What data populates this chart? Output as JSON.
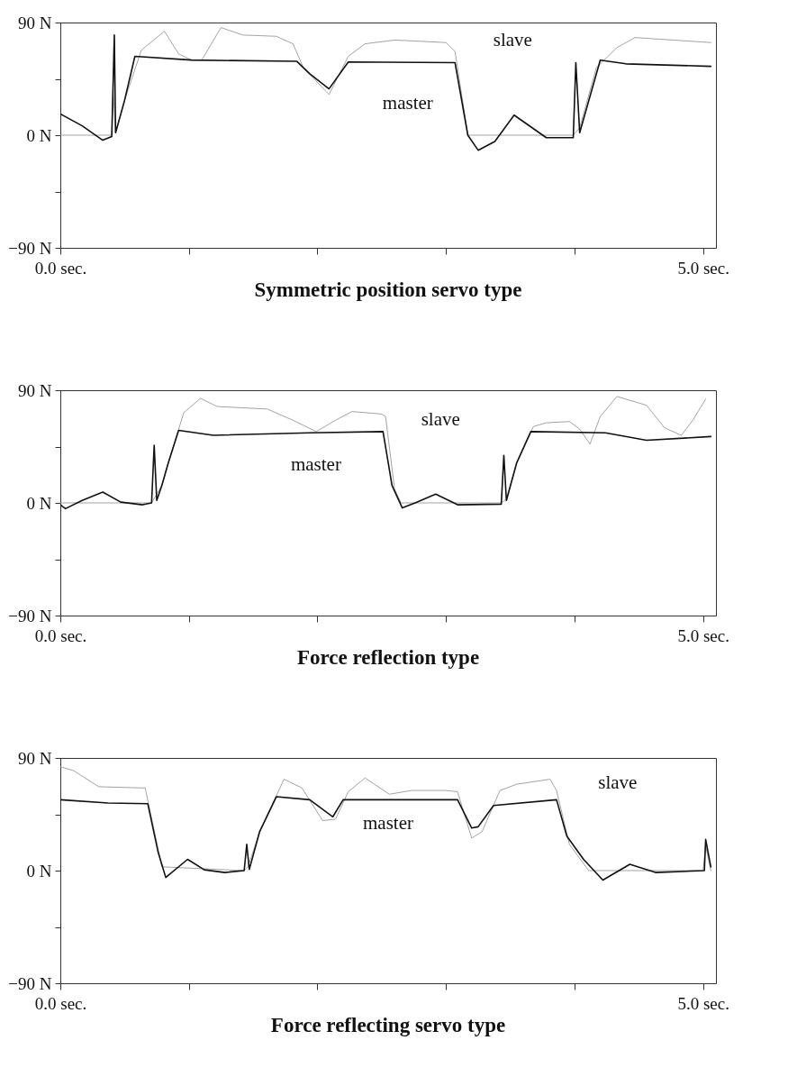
{
  "chart_data": [
    {
      "type": "line",
      "title": "Symmetric position servo type",
      "xlim": [
        0,
        5.1
      ],
      "ylim": [
        -90,
        90
      ],
      "xticks": [
        {
          "value": 0,
          "label": "0.0 sec."
        },
        {
          "value": 1,
          "label": null
        },
        {
          "value": 2,
          "label": null
        },
        {
          "value": 3,
          "label": null
        },
        {
          "value": 4,
          "label": null
        },
        {
          "value": 5,
          "label": "5.0 sec."
        }
      ],
      "yticks": [
        {
          "value": 90,
          "label": "90 N"
        },
        {
          "value": 45,
          "label": null
        },
        {
          "value": 0,
          "label": "0 N"
        },
        {
          "value": -45,
          "label": null
        },
        {
          "value": -90,
          "label": "−90 N"
        }
      ],
      "line_style": "solid",
      "series": [
        {
          "color": "#999999",
          "x": [
            0,
            0.4,
            0.41,
            0.43,
            0.51,
            0.63,
            0.81,
            0.92,
            1.02,
            1.1,
            1.25,
            1.42,
            1.68,
            1.81,
            1.89,
            2.09,
            2.24,
            2.37,
            2.6,
            3.0,
            3.07,
            3.17,
            3.99,
            4.04,
            4.17,
            4.33,
            4.47,
            5.06
          ],
          "values": [
            0,
            0,
            37,
            2,
            31,
            68,
            83,
            65,
            60,
            60,
            86,
            80,
            79,
            73,
            54,
            32.5,
            63,
            73,
            76,
            74,
            67,
            0,
            0,
            6,
            54,
            70,
            78,
            74
          ]
        },
        {
          "color": "#111111",
          "x": [
            0,
            0.17,
            0.33,
            0.4,
            0.42,
            0.43,
            0.5,
            0.58,
            1.02,
            1.84,
            1.94,
            2.09,
            2.24,
            3.07,
            3.17,
            3.25,
            3.38,
            3.53,
            3.78,
            3.99,
            4.01,
            4.04,
            4.2,
            4.4,
            5.06
          ],
          "values": [
            17,
            7.5,
            -4,
            -1,
            80,
            2,
            28,
            63,
            60,
            59,
            49,
            37,
            58.5,
            58,
            0,
            -12,
            -5,
            16,
            -2,
            -2,
            58,
            2,
            60,
            57,
            55
          ]
        }
      ],
      "annotations": [
        "slave",
        "master"
      ]
    },
    {
      "type": "line",
      "title": "Force reflection type",
      "xlim": [
        0,
        5.1
      ],
      "ylim": [
        -90,
        90
      ],
      "xticks": [
        {
          "value": 0,
          "label": "0.0 sec."
        },
        {
          "value": 1,
          "label": null
        },
        {
          "value": 2,
          "label": null
        },
        {
          "value": 3,
          "label": null
        },
        {
          "value": 4,
          "label": null
        },
        {
          "value": 5,
          "label": "5.0 sec."
        }
      ],
      "yticks": [
        {
          "value": 90,
          "label": "90 N"
        },
        {
          "value": 45,
          "label": null
        },
        {
          "value": 0,
          "label": "0 N"
        },
        {
          "value": -45,
          "label": null
        },
        {
          "value": -90,
          "label": "−90 N"
        }
      ],
      "line_style": "solid",
      "series": [
        {
          "color": "#999999",
          "x": [
            0,
            0.71,
            0.79,
            0.84,
            0.96,
            1.09,
            1.22,
            1.61,
            1.81,
            1.99,
            2.14,
            2.27,
            2.5,
            2.53,
            2.6,
            2.65,
            3.43,
            3.47,
            3.55,
            3.68,
            3.78,
            3.96,
            4.04,
            4.12,
            4.2,
            4.33,
            4.56,
            4.7,
            4.83,
            4.92,
            5.02
          ],
          "values": [
            0,
            0,
            14,
            32,
            72,
            83.5,
            77,
            75,
            66,
            57,
            66,
            73,
            71,
            69,
            11,
            0,
            0,
            3,
            32,
            61,
            64,
            65,
            59,
            47,
            69,
            85,
            78,
            60,
            54,
            66,
            83
          ]
        },
        {
          "color": "#111111",
          "x": [
            0,
            0.04,
            0.17,
            0.33,
            0.47,
            0.64,
            0.71,
            0.73,
            0.75,
            0.79,
            0.84,
            0.92,
            1.19,
            1.94,
            2.51,
            2.58,
            2.66,
            2.76,
            2.92,
            3.09,
            3.43,
            3.45,
            3.47,
            3.55,
            3.66,
            4.24,
            4.56,
            5.06
          ],
          "values": [
            -1.5,
            -4.6,
            2,
            8.6,
            0.6,
            -1.5,
            0,
            46,
            2,
            14,
            32,
            58,
            54,
            56,
            57,
            14,
            -4,
            0,
            7,
            -1.5,
            -1,
            38,
            2,
            32,
            57,
            56,
            50,
            53
          ]
        }
      ],
      "annotations": [
        "slave",
        "master"
      ]
    },
    {
      "type": "line",
      "title": "Force reflecting servo type",
      "xlim": [
        0,
        5.1
      ],
      "ylim": [
        -90,
        90
      ],
      "xticks": [
        {
          "value": 0,
          "label": "0.0 sec."
        },
        {
          "value": 1,
          "label": null
        },
        {
          "value": 2,
          "label": null
        },
        {
          "value": 3,
          "label": null
        },
        {
          "value": 4,
          "label": null
        },
        {
          "value": 5,
          "label": "5.0 sec."
        }
      ],
      "yticks": [
        {
          "value": 90,
          "label": "90 N"
        },
        {
          "value": 45,
          "label": null
        },
        {
          "value": 0,
          "label": "0 N"
        },
        {
          "value": -45,
          "label": null
        },
        {
          "value": -90,
          "label": "−90 N"
        }
      ],
      "line_style": "solid",
      "series": [
        {
          "color": "#999999",
          "x": [
            0,
            0.1,
            0.3,
            0.66,
            0.79,
            1.43,
            1.46,
            1.55,
            1.74,
            1.88,
            2.04,
            2.14,
            2.24,
            2.37,
            2.56,
            2.73,
            3.0,
            3.09,
            3.2,
            3.28,
            3.42,
            3.55,
            3.81,
            3.86,
            3.96,
            4.11,
            5.0,
            5.02,
            5.06
          ],
          "values": [
            83,
            80,
            67,
            66,
            3,
            0,
            3,
            31,
            73,
            66,
            40,
            41,
            63,
            74,
            61,
            64,
            64,
            63,
            26,
            31,
            64,
            69,
            73,
            64,
            21,
            0,
            0,
            20,
            0
          ]
        },
        {
          "color": "#111111",
          "x": [
            0,
            0.37,
            0.68,
            0.76,
            0.82,
            0.99,
            1.12,
            1.28,
            1.43,
            1.45,
            1.47,
            1.55,
            1.68,
            1.94,
            2.12,
            2.2,
            3.09,
            3.2,
            3.25,
            3.37,
            3.86,
            3.94,
            4.07,
            4.22,
            4.43,
            4.63,
            5.01,
            5.02,
            5.06
          ],
          "values": [
            56.6,
            54,
            53.5,
            15,
            -5.5,
            9,
            0.6,
            -1.5,
            0,
            21,
            1,
            31,
            59,
            56.6,
            43,
            56.6,
            56.6,
            34,
            35,
            52,
            56.6,
            27.5,
            9,
            -7.6,
            5,
            -1.5,
            0,
            25,
            3
          ]
        }
      ],
      "annotations": [
        "slave",
        "master"
      ]
    }
  ]
}
